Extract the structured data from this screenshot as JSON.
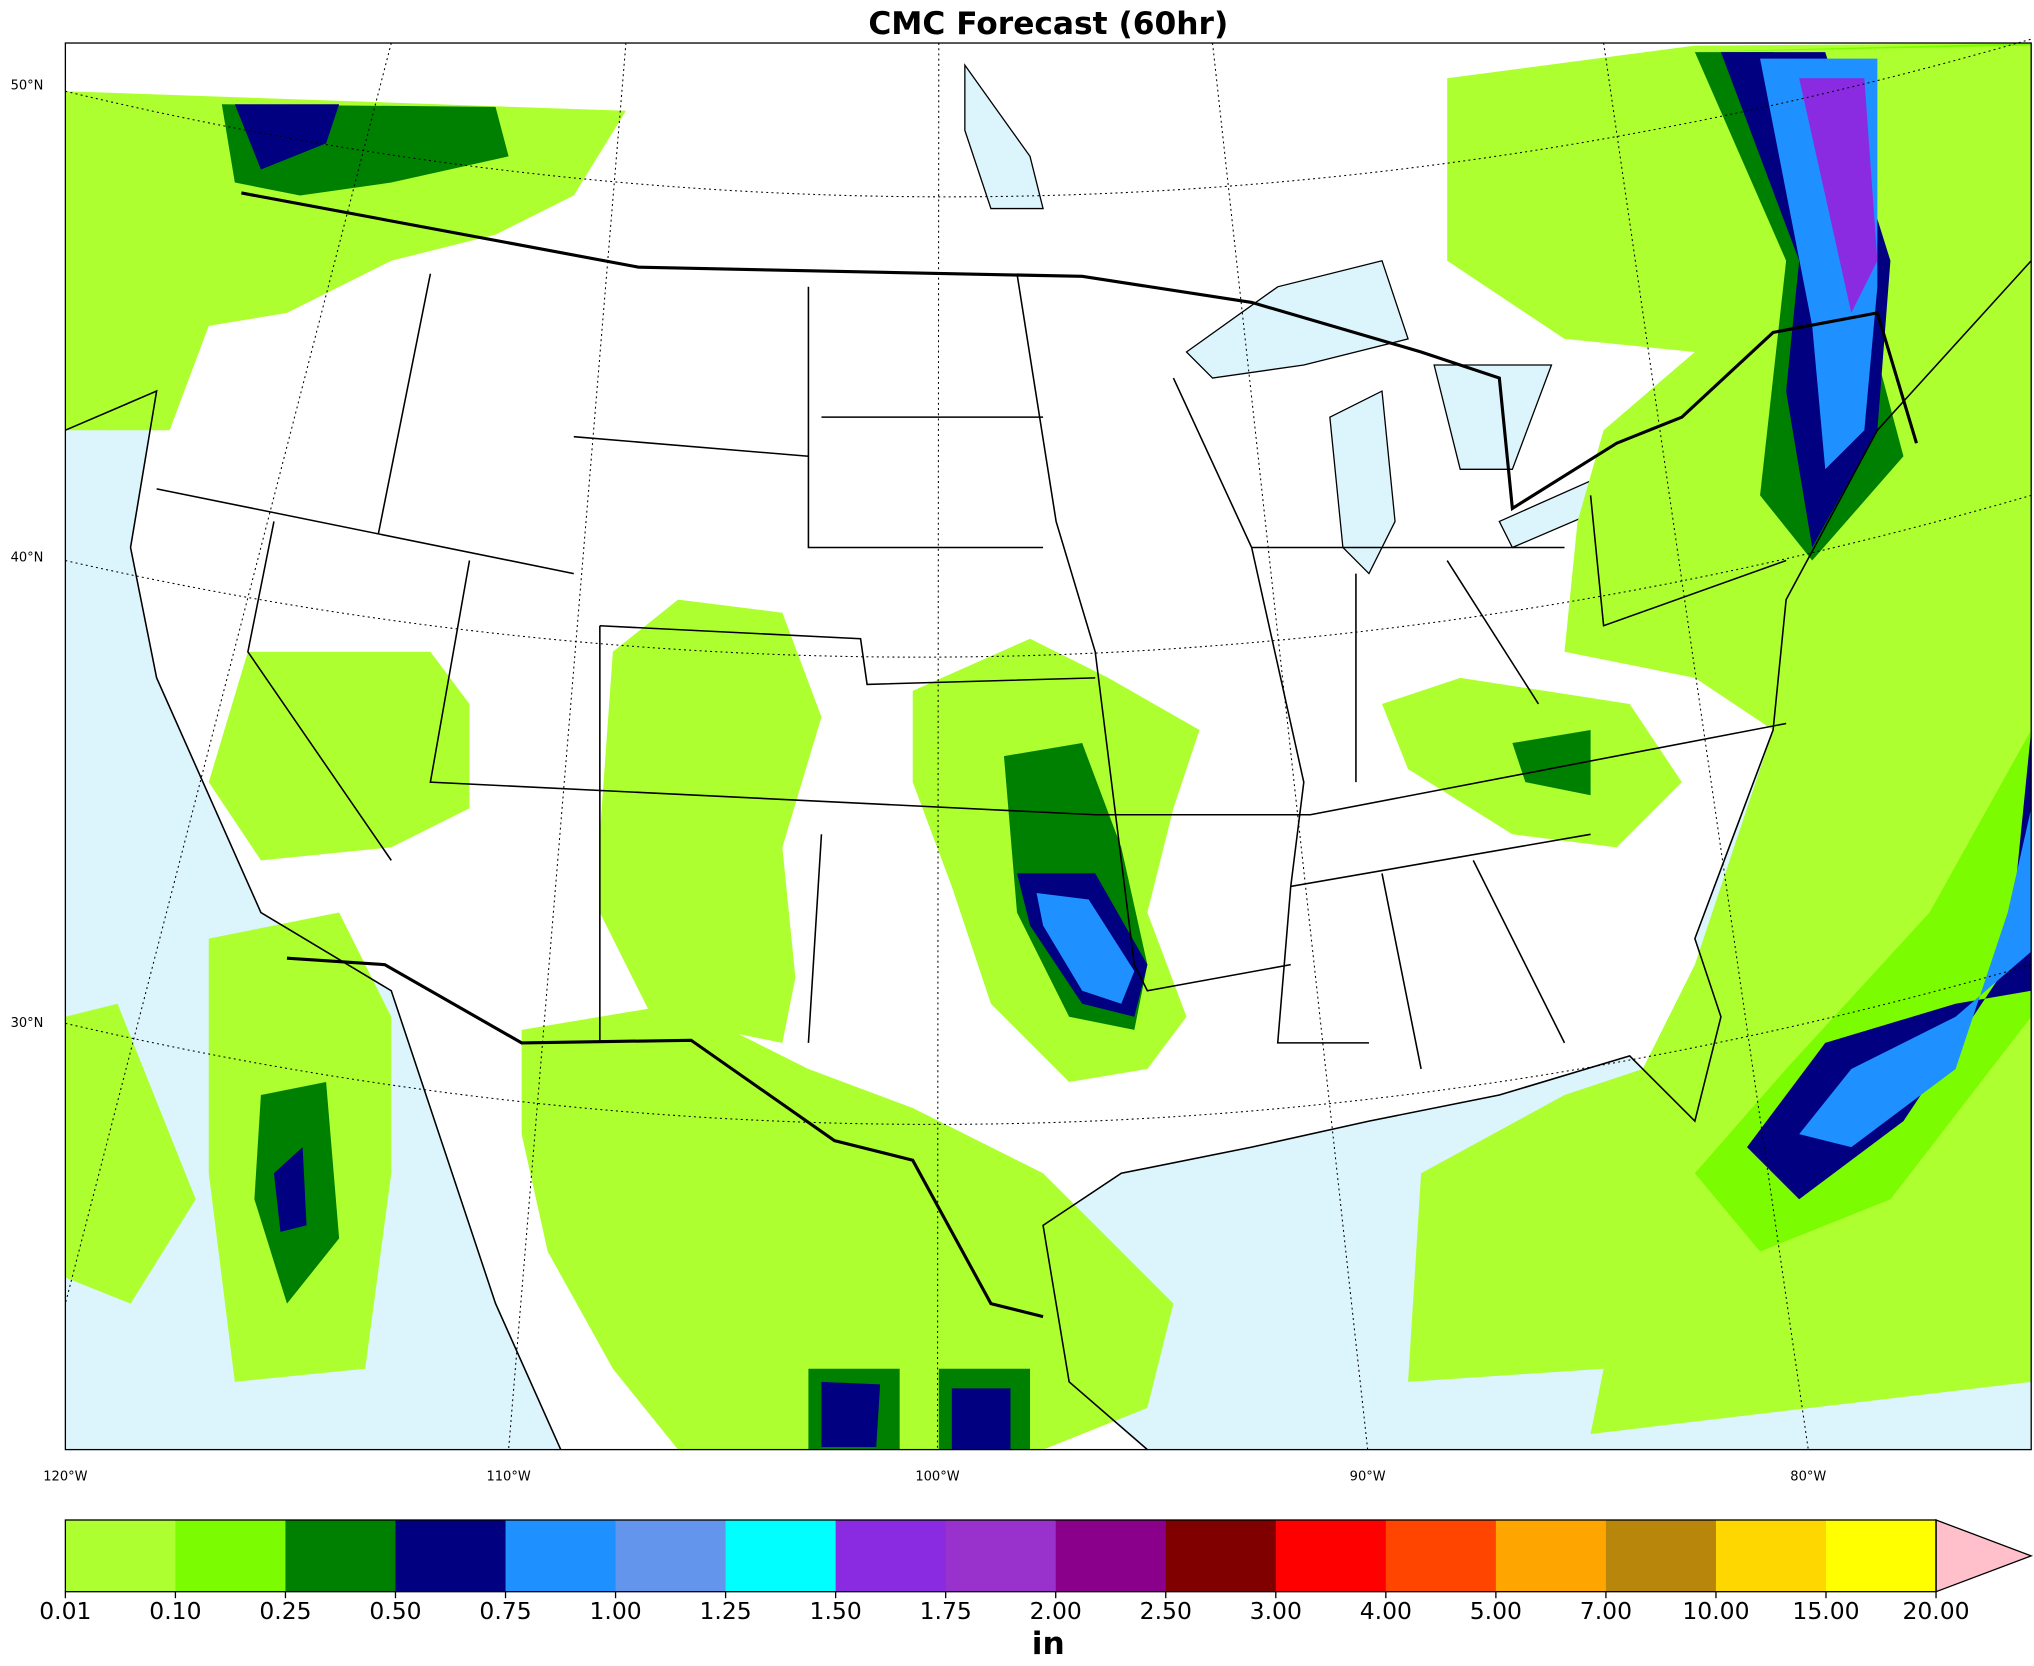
{
  "title": "CMC Forecast (60hr)",
  "map": {
    "lat_labels": [
      "50°N",
      "40°N",
      "30°N"
    ],
    "lon_labels": [
      "120°W",
      "110°W",
      "100°W",
      "90°W",
      "80°W"
    ]
  },
  "colorbar": {
    "labels": [
      "0.01",
      "0.10",
      "0.25",
      "0.50",
      "0.75",
      "1.00",
      "1.25",
      "1.50",
      "1.75",
      "2.00",
      "2.50",
      "3.00",
      "4.00",
      "5.00",
      "7.00",
      "10.00",
      "15.00",
      "20.00"
    ],
    "colors": [
      "#adff2f",
      "#7cfc00",
      "#008000",
      "#000080",
      "#1e90ff",
      "#6495ed",
      "#00ffff",
      "#8a2be2",
      "#9932cc",
      "#8b008b",
      "#800000",
      "#ff0000",
      "#ff4500",
      "#ffa500",
      "#b8860b",
      "#ffd700",
      "#ffff00"
    ],
    "extend_color": "#ffc0cb",
    "unit": "in"
  }
}
